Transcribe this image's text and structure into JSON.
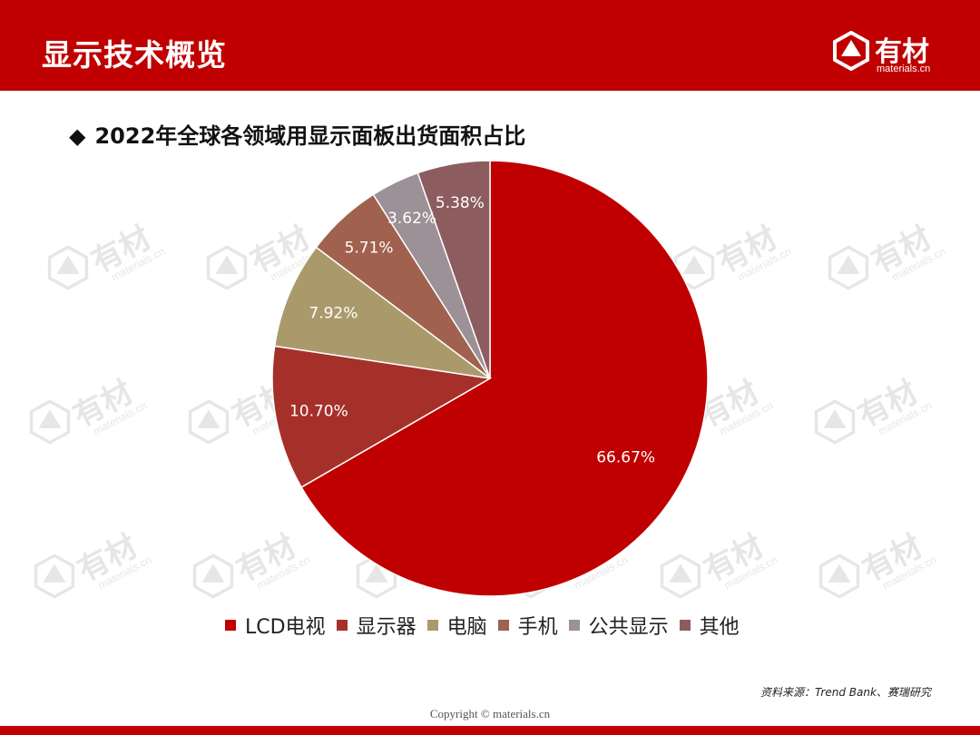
{
  "header": {
    "title": "显示技术概览",
    "logo_text": "有材",
    "logo_sub": "materials.cn",
    "bg_color": "#c00000"
  },
  "watermark": {
    "text": "有材",
    "sub": "materials.cn"
  },
  "chart_data": {
    "type": "pie",
    "title": "2022年全球各领域用显示面板出货面积占比",
    "title_bullet": "◆",
    "slices": [
      {
        "label": "LCD电视",
        "value": 66.67,
        "display": "66.67%",
        "color": "#c00000"
      },
      {
        "label": "显示器",
        "value": 10.7,
        "display": "10.70%",
        "color": "#a5302a"
      },
      {
        "label": "电脑",
        "value": 7.92,
        "display": "7.92%",
        "color": "#aa9a6b"
      },
      {
        "label": "手机",
        "value": 5.71,
        "display": "5.71%",
        "color": "#a0614e"
      },
      {
        "label": "公共显示",
        "value": 3.62,
        "display": "3.62%",
        "color": "#9c9196"
      },
      {
        "label": "其他",
        "value": 5.38,
        "display": "5.38%",
        "color": "#8c5c5f"
      }
    ],
    "legend_position": "bottom"
  },
  "source": "资料来源：Trend Bank、赛瑞研究",
  "copyright": "Copyright © materials.cn"
}
